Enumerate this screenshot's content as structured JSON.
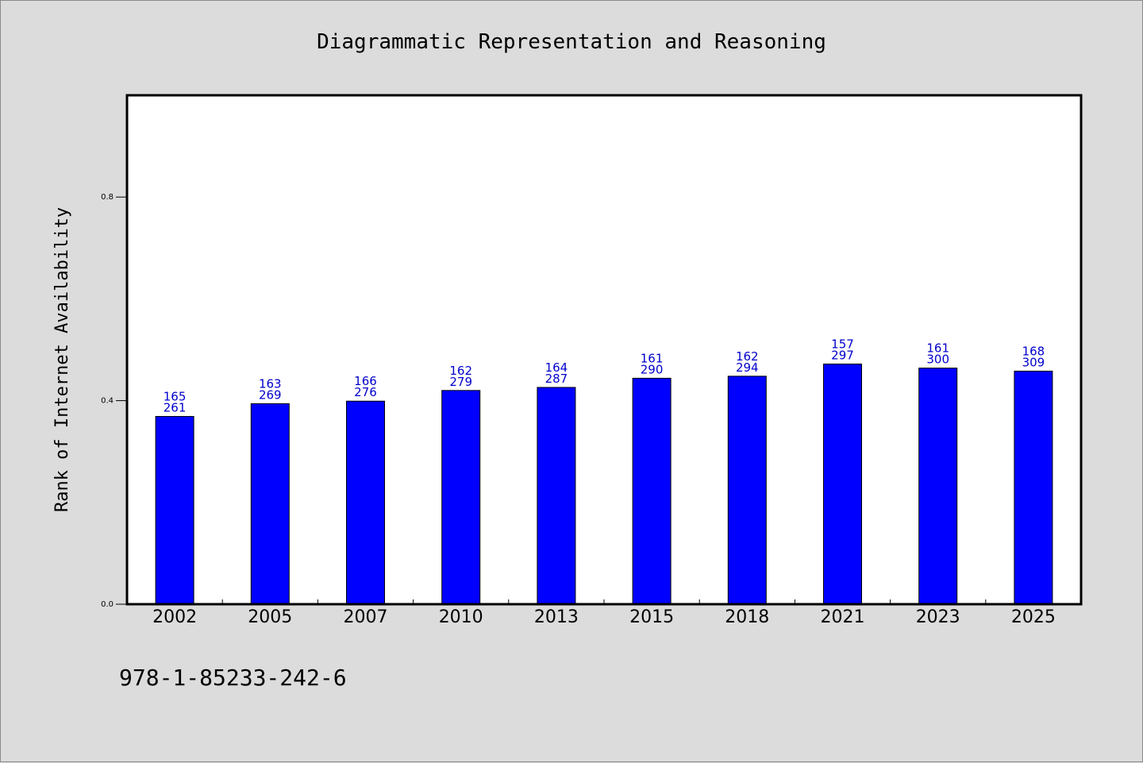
{
  "chart_data": {
    "type": "bar",
    "title": "Diagrammatic Representation and Reasoning",
    "xlabel": "",
    "ylabel": "Rank of Internet Availability",
    "categories": [
      "2002",
      "2005",
      "2007",
      "2010",
      "2013",
      "2015",
      "2018",
      "2021",
      "2023",
      "2025"
    ],
    "values": [
      0.369,
      0.394,
      0.399,
      0.42,
      0.426,
      0.444,
      0.448,
      0.472,
      0.464,
      0.458
    ],
    "annotations_top": [
      "165",
      "163",
      "166",
      "162",
      "164",
      "161",
      "162",
      "157",
      "161",
      "168"
    ],
    "annotations_bottom": [
      "261",
      "269",
      "276",
      "279",
      "287",
      "290",
      "294",
      "297",
      "300",
      "309"
    ],
    "yticks": [
      "0.0",
      "0.4",
      "0.8"
    ],
    "ylim": [
      0,
      1.0
    ],
    "grid": false,
    "legend": "none",
    "bar_color": "#0000ff",
    "annotation_color": "#0000cc"
  },
  "footer": {
    "isbn": "978-1-85233-242-6"
  }
}
